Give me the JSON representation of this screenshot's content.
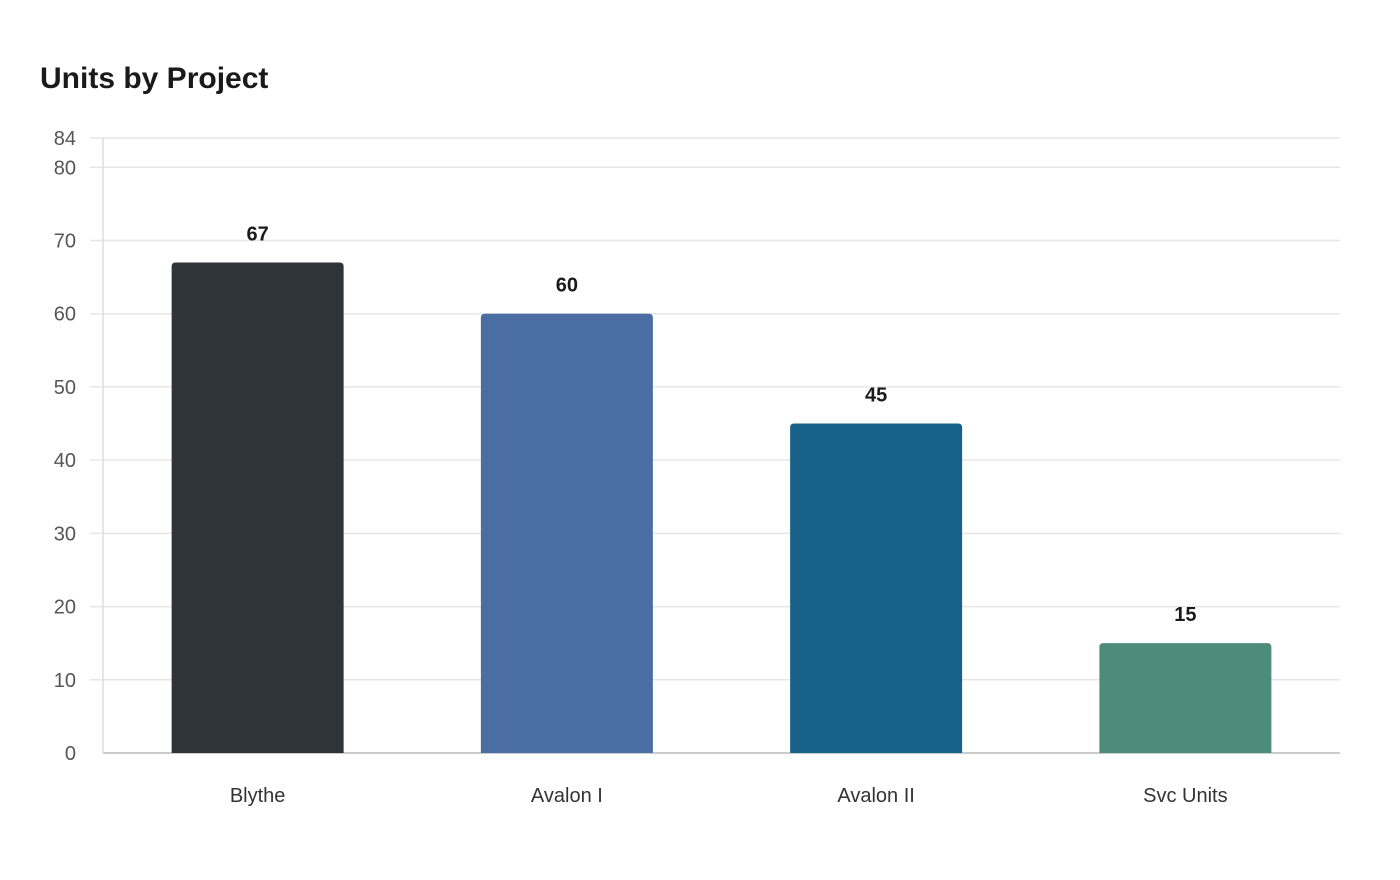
{
  "chart_data": {
    "type": "bar",
    "title": "Units by Project",
    "xlabel": "",
    "ylabel": "",
    "categories": [
      "Blythe",
      "Avalon I",
      "Avalon II",
      "Svc Units"
    ],
    "values": [
      67,
      60,
      45,
      15
    ],
    "colors": [
      "#2d3538",
      "#4a6ea3",
      "#186189",
      "#4e8c7a"
    ],
    "ylim": [
      0,
      84
    ],
    "yticks": [
      0,
      10,
      20,
      30,
      40,
      50,
      60,
      70,
      80,
      84
    ],
    "grid": true,
    "data_labels": true,
    "legend": "none"
  }
}
